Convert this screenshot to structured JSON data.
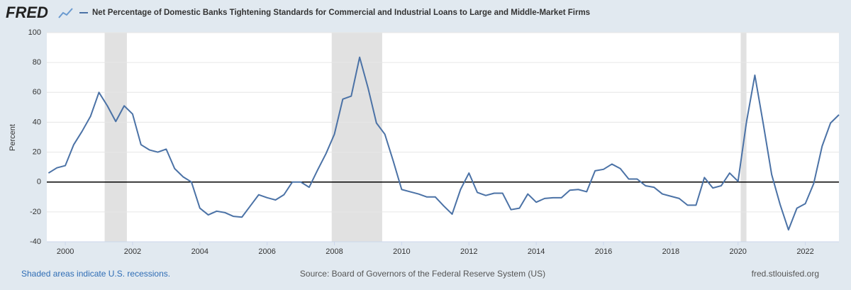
{
  "logo": "FRED",
  "chart_data": {
    "type": "line",
    "y_label": "Percent",
    "xlim": [
      1999.45,
      2023.0
    ],
    "xticks": [
      2000,
      2002,
      2004,
      2006,
      2008,
      2010,
      2012,
      2014,
      2016,
      2018,
      2020,
      2022
    ],
    "ylim": [
      -40,
      100
    ],
    "yticks": [
      -40,
      -20,
      0,
      20,
      40,
      60,
      80,
      100
    ],
    "grid": true,
    "recessions": [
      [
        2001.17,
        2001.83
      ],
      [
        2007.92,
        2009.42
      ],
      [
        2020.08,
        2020.25
      ]
    ],
    "x": [
      1999.5,
      1999.75,
      2000,
      2000.25,
      2000.5,
      2000.75,
      2001,
      2001.25,
      2001.5,
      2001.75,
      2002,
      2002.25,
      2002.5,
      2002.75,
      2003,
      2003.25,
      2003.5,
      2003.75,
      2004,
      2004.25,
      2004.5,
      2004.75,
      2005,
      2005.25,
      2005.5,
      2005.75,
      2006,
      2006.25,
      2006.5,
      2006.75,
      2007,
      2007.25,
      2007.5,
      2007.75,
      2008,
      2008.25,
      2008.5,
      2008.75,
      2009,
      2009.25,
      2009.5,
      2009.75,
      2010,
      2010.25,
      2010.5,
      2010.75,
      2011,
      2011.25,
      2011.5,
      2011.75,
      2012,
      2012.25,
      2012.5,
      2012.75,
      2013,
      2013.25,
      2013.5,
      2013.75,
      2014,
      2014.25,
      2014.5,
      2014.75,
      2015,
      2015.25,
      2015.5,
      2015.75,
      2016,
      2016.25,
      2016.5,
      2016.75,
      2017,
      2017.25,
      2017.5,
      2017.75,
      2018,
      2018.25,
      2018.5,
      2018.75,
      2019,
      2019.25,
      2019.5,
      2019.75,
      2020,
      2020.25,
      2020.5,
      2020.75,
      2021,
      2021.25,
      2021.5,
      2021.75,
      2022,
      2022.25,
      2022.5,
      2022.75,
      2023
    ],
    "series": [
      {
        "name": "Net Percentage of Domestic Banks Tightening Standards for Commercial and Industrial Loans to Large and Middle-Market Firms",
        "color": "#4b72a6",
        "values": [
          6,
          9.5,
          11,
          25,
          34,
          44,
          60,
          51,
          40.5,
          51,
          45.5,
          25,
          21.5,
          20,
          22,
          9,
          3.5,
          0,
          -17.5,
          -22,
          -19.5,
          -20.5,
          -23,
          -23.5,
          -16,
          -8.5,
          -10.5,
          -12,
          -8.5,
          0,
          0,
          -3.5,
          8,
          19,
          32,
          55.5,
          57.5,
          83.5,
          63,
          39.5,
          32,
          14,
          -5,
          -6.5,
          -8,
          -10,
          -10,
          -16,
          -21.5,
          -5,
          6,
          -7,
          -9,
          -7.5,
          -7.5,
          -18.5,
          -17.5,
          -8,
          -13.5,
          -11,
          -10.5,
          -10.5,
          -5.5,
          -5,
          -6.5,
          7.5,
          8.5,
          12,
          9,
          2,
          2,
          -2.5,
          -3.5,
          -8,
          -9.5,
          -11,
          -15.5,
          -15.5,
          3,
          -4,
          -2.5,
          6,
          0.5,
          40,
          71.5,
          39,
          5,
          -15,
          -32,
          -17.5,
          -14.5,
          -1,
          24,
          39.5,
          45
        ]
      }
    ],
    "recession_note": "Shaded areas indicate U.S. recessions.",
    "source": "Source: Board of Governors of the Federal Reserve System (US)",
    "site": "fred.stlouisfed.org"
  }
}
